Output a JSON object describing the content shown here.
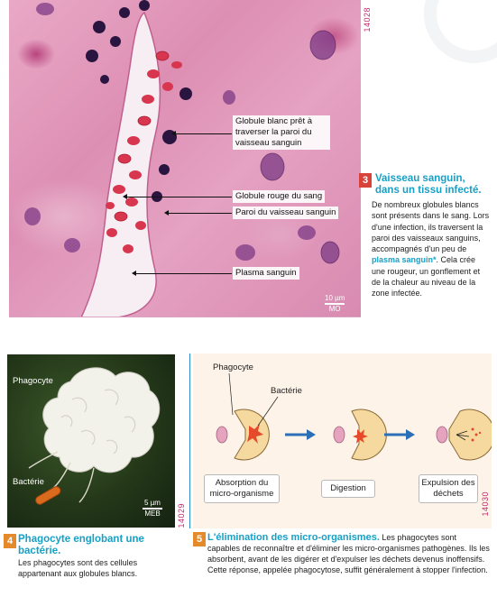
{
  "figure3": {
    "code": "14028",
    "scale": "10 µm",
    "scale_method": "MO",
    "labels": {
      "white_cell": "Globule blanc prêt à traverser la paroi du vaisseau sanguin",
      "red_cell": "Globule rouge du sang",
      "wall": "Paroi du vaisseau sanguin",
      "plasma": "Plasma sanguin"
    },
    "caption": {
      "number": "3",
      "title": "Vaisseau sanguin, dans un tissu infecté.",
      "body_before": "De nombreux globules blancs sont présents dans le sang. Lors d'une infection, ils traversent la paroi des vaisseaux sanguins, accompagnés d'un peu de",
      "keyword": "plasma sanguin*",
      "body_after": ". Cela crée une rougeur, un gonflement et de la chaleur au niveau de la zone infectée."
    }
  },
  "figure4": {
    "code": "14029",
    "labels": {
      "phagocyte": "Phagocyte",
      "bacteria": "Bactérie"
    },
    "scale": "5 µm",
    "scale_method": "MEB",
    "caption": {
      "number": "4",
      "title": "Phagocyte englobant une bactérie.",
      "body": "Les phagocytes sont des cellules appartenant aux globules blancs."
    }
  },
  "figure5": {
    "code": "14030",
    "labels": {
      "phagocyte": "Phagocyte",
      "bacteria": "Bactérie"
    },
    "steps": [
      "Absorption du micro-organisme",
      "Digestion",
      "Expulsion des déchets"
    ],
    "caption": {
      "number": "5",
      "title": "L'élimination des micro-organismes.",
      "body": "Les phagocytes sont capables de reconnaître et d'éliminer les micro-organismes pathogènes. Ils les absorbent, avant de les digérer et d'expulser les déchets devenus inoffensifs. Cette réponse, appelée phagocytose, suffit généralement à stopper l'infection."
    }
  },
  "colors": {
    "accent": "#17a0c6",
    "number_badge": "#d8423b",
    "arrow": "#2b6fb6"
  }
}
